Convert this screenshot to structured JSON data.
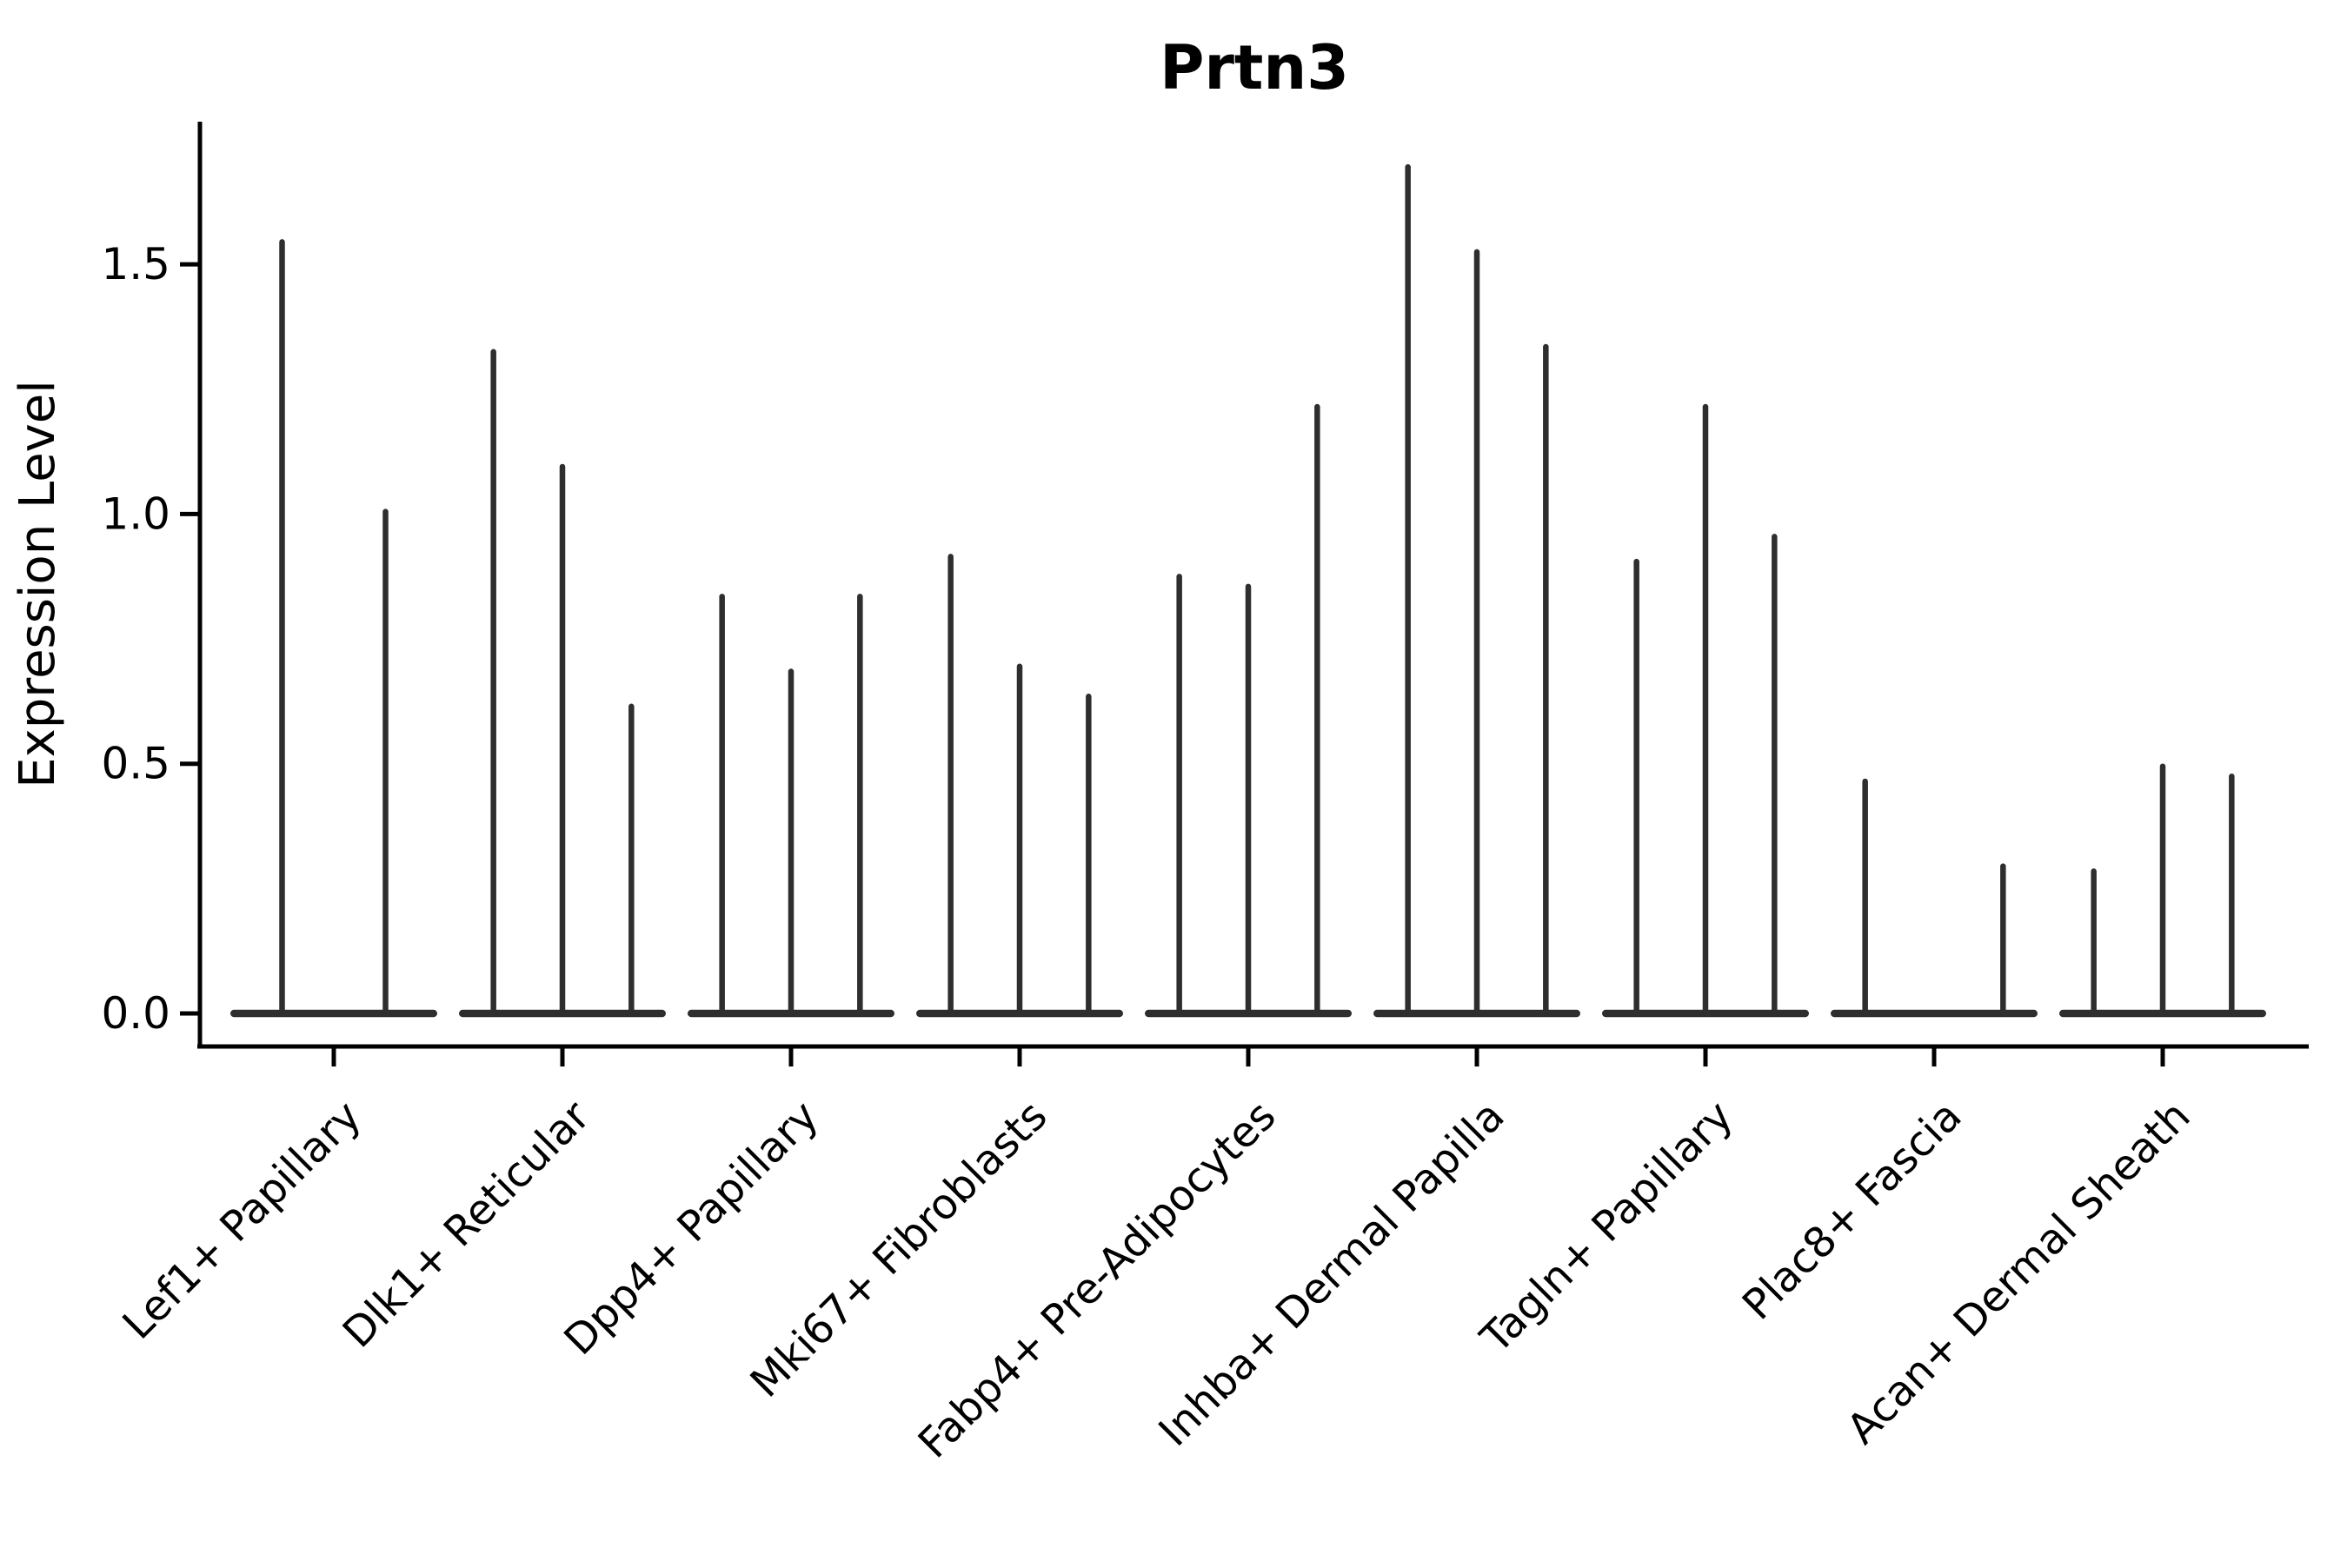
{
  "chart_data": {
    "type": "violin",
    "title": "Prtn3",
    "ylabel": "Expression Level",
    "xlabel": "",
    "ylim": [
      -0.07,
      1.79
    ],
    "grid": false,
    "legend_position": "none",
    "yticks": [
      {
        "value": 0.0,
        "label": "0.0"
      },
      {
        "value": 0.5,
        "label": "0.5"
      },
      {
        "value": 1.0,
        "label": "1.0"
      },
      {
        "value": 1.5,
        "label": "1.5"
      }
    ],
    "categories": [
      "Lef1+ Papillary",
      "Dlk1+ Reticular",
      "Dpp4+ Papillary",
      "Mki67+ Fibroblasts",
      "Fabp4+ Pre-Adipocytes",
      "Inhba+ Dermal Papilla",
      "Tagln+ Papillary",
      "Plac8+ Fascia",
      "Acan+ Dermal Sheath"
    ],
    "groups": [
      {
        "category": "Lef1+ Papillary",
        "violin_max_values": [
          1.55,
          1.01
        ]
      },
      {
        "category": "Dlk1+ Reticular",
        "violin_max_values": [
          1.33,
          1.1,
          0.62
        ]
      },
      {
        "category": "Dpp4+ Papillary",
        "violin_max_values": [
          0.84,
          0.69,
          0.84
        ]
      },
      {
        "category": "Mki67+ Fibroblasts",
        "violin_max_values": [
          0.92,
          0.7,
          0.64
        ]
      },
      {
        "category": "Fabp4+ Pre-Adipocytes",
        "violin_max_values": [
          0.88,
          0.86,
          1.22
        ]
      },
      {
        "category": "Inhba+ Dermal Papilla",
        "violin_max_values": [
          1.7,
          1.53,
          1.34
        ]
      },
      {
        "category": "Tagln+ Papillary",
        "violin_max_values": [
          0.91,
          1.22,
          0.96
        ]
      },
      {
        "category": "Plac8+ Fascia",
        "violin_max_values": [
          0.47,
          null,
          0.3
        ]
      },
      {
        "category": "Acan+ Dermal Sheath",
        "violin_max_values": [
          0.29,
          0.5,
          0.48
        ]
      }
    ],
    "colors": {
      "ink": "#2e2e2e",
      "axis": "#000000",
      "background": "#ffffff"
    }
  }
}
